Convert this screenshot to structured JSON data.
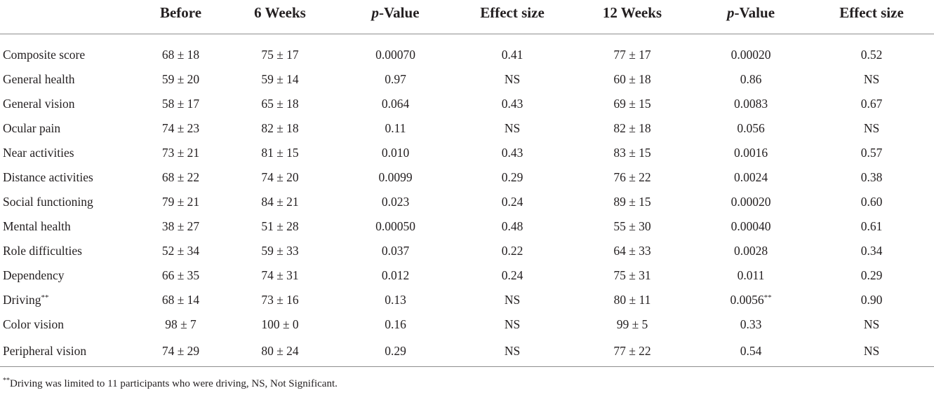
{
  "header": {
    "blank": "",
    "before": "Before",
    "six_weeks": "6 Weeks",
    "p_value_1_italic": "p",
    "p_value_1_rest": "-Value",
    "effect_size_1": "Effect size",
    "twelve_weeks": "12 Weeks",
    "p_value_2_italic": "p",
    "p_value_2_rest": "-Value",
    "effect_size_2": "Effect size"
  },
  "rows": [
    {
      "label": "Composite score",
      "before": "68 ± 18",
      "w6": "75 ± 17",
      "p6": "0.00070",
      "es6": "0.41",
      "w12": "77 ± 17",
      "p12": "0.00020",
      "es12": "0.52"
    },
    {
      "label": "General health",
      "before": "59 ± 20",
      "w6": "59 ± 14",
      "p6": "0.97",
      "es6": "NS",
      "w12": "60 ± 18",
      "p12": "0.86",
      "es12": "NS"
    },
    {
      "label": "General vision",
      "before": "58 ± 17",
      "w6": "65 ± 18",
      "p6": "0.064",
      "es6": "0.43",
      "w12": "69 ± 15",
      "p12": "0.0083",
      "es12": "0.67"
    },
    {
      "label": "Ocular pain",
      "before": "74 ± 23",
      "w6": "82 ± 18",
      "p6": "0.11",
      "es6": "NS",
      "w12": "82 ± 18",
      "p12": "0.056",
      "es12": "NS"
    },
    {
      "label": "Near activities",
      "before": "73 ± 21",
      "w6": "81 ± 15",
      "p6": "0.010",
      "es6": "0.43",
      "w12": "83 ± 15",
      "p12": "0.0016",
      "es12": "0.57"
    },
    {
      "label": "Distance activities",
      "before": "68 ± 22",
      "w6": "74 ± 20",
      "p6": "0.0099",
      "es6": "0.29",
      "w12": "76 ± 22",
      "p12": "0.0024",
      "es12": "0.38"
    },
    {
      "label": "Social functioning",
      "before": "79 ± 21",
      "w6": "84 ± 21",
      "p6": "0.023",
      "es6": "0.24",
      "w12": "89 ± 15",
      "p12": "0.00020",
      "es12": "0.60"
    },
    {
      "label": "Mental health",
      "before": "38 ± 27",
      "w6": "51 ± 28",
      "p6": "0.00050",
      "es6": "0.48",
      "w12": "55 ± 30",
      "p12": "0.00040",
      "es12": "0.61"
    },
    {
      "label": "Role difficulties",
      "before": "52 ± 34",
      "w6": "59 ± 33",
      "p6": "0.037",
      "es6": "0.22",
      "w12": "64 ± 33",
      "p12": "0.0028",
      "es12": "0.34"
    },
    {
      "label": "Dependency",
      "before": "66 ± 35",
      "w6": "74 ± 31",
      "p6": "0.012",
      "es6": "0.24",
      "w12": "75 ± 31",
      "p12": "0.011",
      "es12": "0.29"
    },
    {
      "label": "Driving",
      "label_mark": "**",
      "before": "68 ± 14",
      "w6": "73 ± 16",
      "p6": "0.13",
      "es6": "NS",
      "w12": "80 ± 11",
      "p12": "0.0056",
      "p12_mark": "**",
      "es12": "0.90"
    },
    {
      "label": "Color vision",
      "before": "98 ± 7",
      "w6": "100 ± 0",
      "p6": "0.16",
      "es6": "NS",
      "w12": "99 ± 5",
      "p12": "0.33",
      "es12": "NS"
    },
    {
      "label": "Peripheral vision",
      "before": "74 ± 29",
      "w6": "80 ± 24",
      "p6": "0.29",
      "es6": "NS",
      "w12": "77 ± 22",
      "p12": "0.54",
      "es12": "NS"
    }
  ],
  "footnote": {
    "mark": "**",
    "text": "Driving was limited to 11 participants who were driving, NS, Not Significant."
  }
}
